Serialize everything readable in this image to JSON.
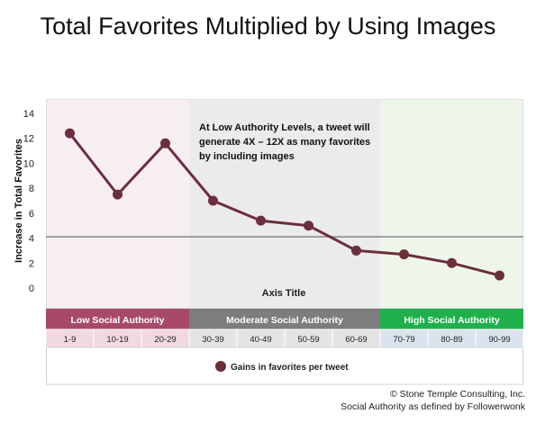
{
  "page": {
    "title": "Total Favorites Multiplied by Using Images",
    "footer_line1": "© Stone Temple Consulting, Inc.",
    "footer_line2": "Social Authority as defined by Followerwonk"
  },
  "chart_data": {
    "type": "line",
    "title": "Total Favorites Multiplied by Using Images",
    "xlabel": "Axis Title",
    "ylabel": "Increase in Total Favorites",
    "ylim": [
      0,
      14
    ],
    "yticks": [
      0,
      2,
      4,
      6,
      8,
      10,
      12,
      14
    ],
    "categories": [
      "1-9",
      "10-19",
      "20-29",
      "30-39",
      "40-49",
      "50-59",
      "60-69",
      "70-79",
      "80-89",
      "90-99"
    ],
    "series": [
      {
        "name": "Gains in favorites per tweet",
        "color": "#6b2f3c",
        "values": [
          12.4,
          7.5,
          11.6,
          7.0,
          5.4,
          5.0,
          3.0,
          2.7,
          2.0,
          1.0
        ]
      }
    ],
    "reference_line": {
      "value": 4.1,
      "color": "#888888"
    },
    "annotation": {
      "lines": [
        "At Low Authority Levels, a tweet will",
        "generate 4X – 12X as many favorites",
        "by including images"
      ]
    },
    "bands": [
      {
        "label": "Low Social Authority",
        "start": 0,
        "end": 2,
        "header_color": "#a8496c",
        "bg_color": "#f7eef1",
        "cell_color": "#f1d9e1"
      },
      {
        "label": "Moderate Social Authority",
        "start": 3,
        "end": 6,
        "header_color": "#7d7d7d",
        "bg_color": "#ebebeb",
        "cell_color": "#e4e4e4"
      },
      {
        "label": "High Social Authority",
        "start": 7,
        "end": 9,
        "header_color": "#1fb04d",
        "bg_color": "#eef6ec",
        "cell_color": "#dbe3ef"
      }
    ],
    "legend": {
      "position": "bottom",
      "label": "Gains in favorites per tweet"
    },
    "grid": false
  }
}
